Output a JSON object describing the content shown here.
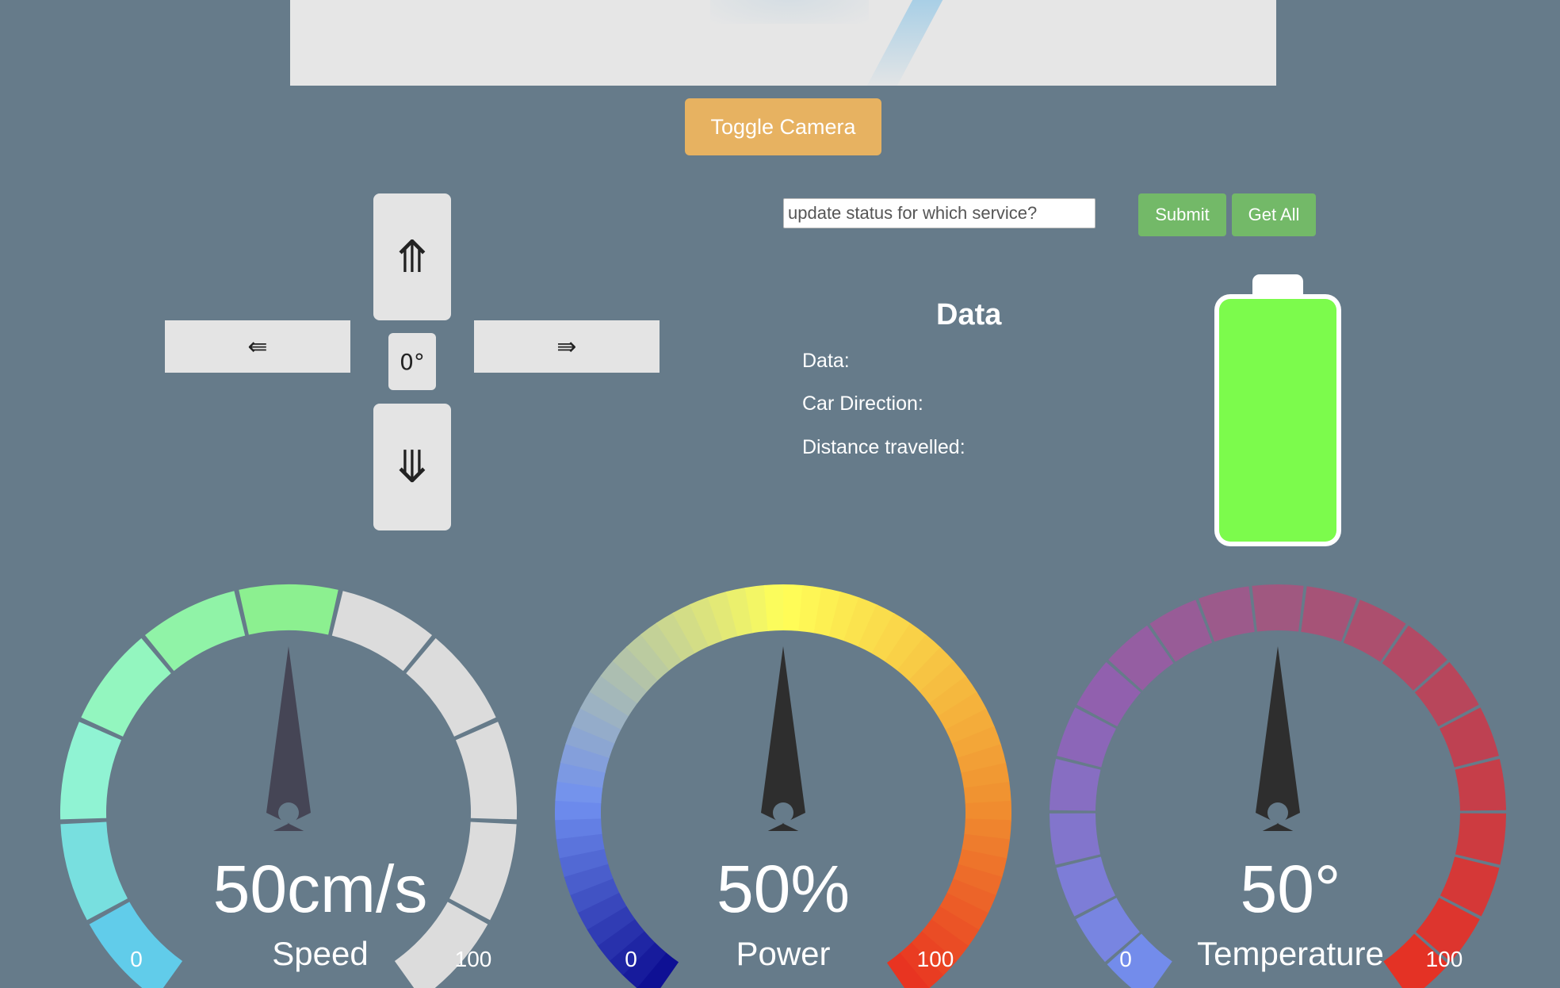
{
  "camera": {
    "toggle_label": "Toggle Camera"
  },
  "controls": {
    "up_label": "⤊",
    "down_label": "⤋",
    "left_label": "⇚",
    "right_label": "⇛",
    "center_label": "0°"
  },
  "status": {
    "placeholder": "update status for which service?",
    "value": "",
    "submit_label": "Submit",
    "get_all_label": "Get All"
  },
  "data_panel": {
    "title": "Data",
    "data_label": "Data:",
    "direction_label": "Car Direction:",
    "distance_label": "Distance travelled:"
  },
  "battery": {
    "level": 1.0,
    "fill_color": "#7cfb4c"
  },
  "gauges": [
    {
      "name": "speed",
      "value": 50,
      "min": 0,
      "max": 100,
      "value_text": "50cm/s",
      "label": "Speed",
      "min_label": "0",
      "max_label": "100"
    },
    {
      "name": "power",
      "value": 50,
      "min": 0,
      "max": 100,
      "value_text": "50%",
      "label": "Power",
      "min_label": "0",
      "max_label": "100"
    },
    {
      "name": "temperature",
      "value": 50,
      "min": 0,
      "max": 100,
      "value_text": "50°",
      "label": "Temperature",
      "min_label": "0",
      "max_label": "100"
    }
  ],
  "colors": {
    "background": "#667b8a",
    "toggle_button": "#e7b261",
    "green_button": "#73b968"
  }
}
